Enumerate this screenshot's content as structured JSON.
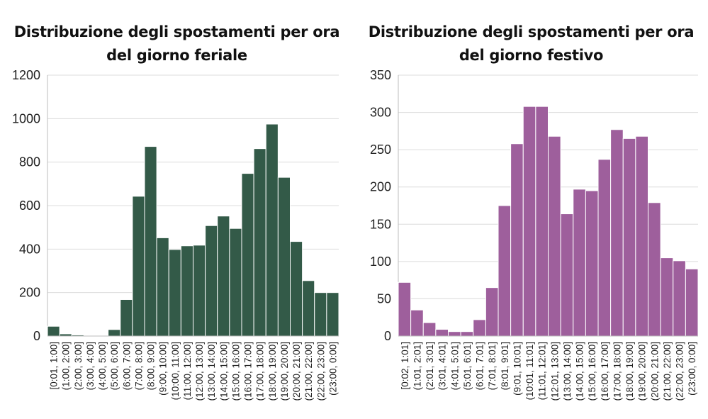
{
  "chart_data": [
    {
      "type": "bar",
      "title": "Distribuzione degli spostamenti per ora",
      "subtitle": "del giorno feriale",
      "xlabel": "",
      "ylabel": "",
      "ylim": [
        0,
        1200
      ],
      "yticks": [
        0,
        200,
        400,
        600,
        800,
        1000,
        1200
      ],
      "grid": true,
      "color": "#335a48",
      "categories": [
        "[0:01, 1:00]",
        "(1:00, 2:00]",
        "(2:00, 3:00]",
        "(3:00, 4:00]",
        "(4:00, 5:00]",
        "(5:00, 6:00]",
        "(6:00, 7:00]",
        "(7:00, 8:00]",
        "(8:00, 9:00]",
        "(9:00, 10:00]",
        "(10:00, 11:00]",
        "(11:00, 12:00]",
        "(12:00, 13:00]",
        "(13:00, 14:00]",
        "(14:00, 15:00]",
        "(15:00, 16:00]",
        "(16:00, 17:00]",
        "(17:00, 18:00]",
        "(18:00, 19:00]",
        "(19:00, 20:00]",
        "(20:00, 21:00]",
        "(21:00, 22:00]",
        "(22:00, 23:00]",
        "(23:00, 0:00]"
      ],
      "values": [
        45,
        10,
        5,
        2,
        2,
        30,
        168,
        643,
        872,
        452,
        398,
        415,
        418,
        508,
        552,
        495,
        748,
        862,
        975,
        730,
        435,
        255,
        200,
        200
      ]
    },
    {
      "type": "bar",
      "title": "Distribuzione degli spostamenti per ora",
      "subtitle": "del giorno festivo",
      "xlabel": "",
      "ylabel": "",
      "ylim": [
        0,
        350
      ],
      "yticks": [
        0,
        50,
        100,
        150,
        200,
        250,
        300,
        350
      ],
      "grid": true,
      "color": "#9e5f9c",
      "categories": [
        "[0:02, 1:01]",
        "(1:01, 2:01]",
        "(2:01, 3:01]",
        "(3:01, 4:01]",
        "(4:01, 5:01]",
        "(5:01, 6:01]",
        "(6:01, 7:01]",
        "(7:01, 8:01]",
        "(8:01, 9:01]",
        "(9:01, 10:01]",
        "(10:01, 11:01]",
        "(11:01, 12:01]",
        "(12:01, 13:00]",
        "(13:00, 14:00]",
        "(14:00, 15:00]",
        "(15:00, 16:00]",
        "(16:00, 17:00]",
        "(17:00, 18:00]",
        "(18:00, 19:00]",
        "(19:00, 20:00]",
        "(20:00, 21:00]",
        "(21:00, 22:00]",
        "(22:00, 23:00]",
        "(23:00, 0:00]"
      ],
      "values": [
        72,
        35,
        18,
        9,
        6,
        6,
        22,
        65,
        175,
        258,
        308,
        308,
        268,
        164,
        197,
        195,
        237,
        277,
        265,
        268,
        179,
        105,
        101,
        90
      ]
    }
  ]
}
